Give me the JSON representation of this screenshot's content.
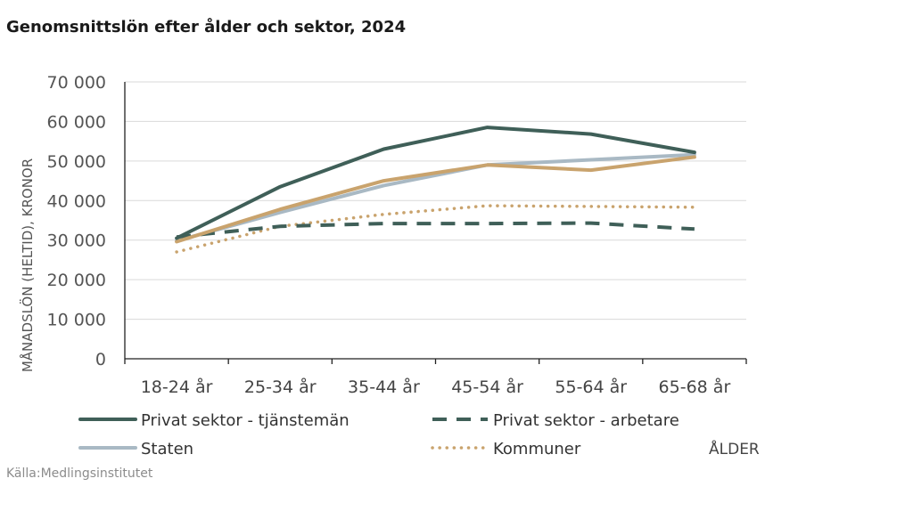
{
  "title": "Genomsnittslön efter ålder och sektor, 2024",
  "source": "Källa:Medlingsinstitutet",
  "chart_data": {
    "type": "line",
    "title": "Genomsnittslön efter ålder och sektor, 2024",
    "xlabel": "ÅLDER",
    "ylabel": "MÅNADSLÖN (HELTID), KRONOR",
    "categories": [
      "18-24 år",
      "25-34 år",
      "35-44 år",
      "45-54 år",
      "55-64 år",
      "65-68 år"
    ],
    "ylim": [
      0,
      70000
    ],
    "yticks": [
      0,
      10000,
      20000,
      30000,
      40000,
      50000,
      60000,
      70000
    ],
    "ytick_labels": [
      "0",
      "10 000",
      "20 000",
      "30 000",
      "40 000",
      "50 000",
      "60 000",
      "70 000"
    ],
    "grid": true,
    "legend_position": "bottom",
    "series": [
      {
        "name": "Privat sektor - tjänstemän",
        "style": "solid",
        "color": "#3f5f58",
        "values": [
          30500,
          43500,
          53000,
          58500,
          56800,
          52200
        ]
      },
      {
        "name": "Privat sektor - arbetare",
        "style": "dashed",
        "color": "#3f5f58",
        "values": [
          30800,
          33500,
          34200,
          34200,
          34300,
          32800
        ]
      },
      {
        "name": "Staten",
        "style": "solid",
        "color": "#a9b9c4",
        "values": [
          29800,
          37000,
          43800,
          49000,
          50300,
          51600
        ]
      },
      {
        "name": "Kommuner",
        "style": "dotted",
        "color": "#c9a36d",
        "values": [
          27000,
          33500,
          36500,
          38700,
          38500,
          38300
        ]
      },
      {
        "name": "",
        "style": "solid",
        "color": "#c9a36d",
        "values": [
          29600,
          37800,
          45000,
          49000,
          47700,
          51000
        ]
      }
    ]
  }
}
